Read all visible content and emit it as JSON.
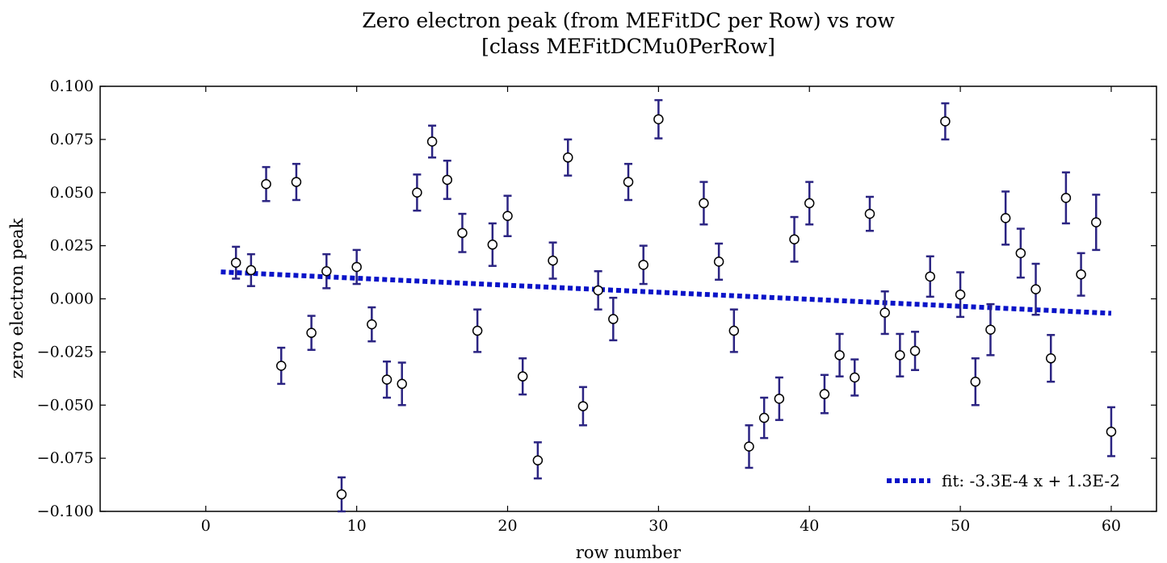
{
  "chart_data": {
    "type": "scatter",
    "title": "Zero electron peak (from MEFitDC per Row) vs row",
    "subtitle": "[class MEFitDCMu0PerRow]",
    "xlabel": "row number",
    "ylabel": "zero electron peak",
    "xlim": [
      -7,
      63
    ],
    "ylim": [
      -0.1,
      0.1
    ],
    "xticks": [
      "0",
      "10",
      "20",
      "30",
      "40",
      "50",
      "60"
    ],
    "yticks": [
      "0.100",
      "0.075",
      "0.050",
      "0.025",
      "0.000",
      "−0.025",
      "−0.050",
      "−0.075",
      "−0.100"
    ],
    "grid": false,
    "legend_position": "bottom-right",
    "series": [
      {
        "kind": "errorbar",
        "color": "#2b2482",
        "marker_fill": "#ffffff",
        "points": [
          {
            "x": 2,
            "y": 0.017,
            "err": 0.0075
          },
          {
            "x": 3,
            "y": 0.0135,
            "err": 0.0075
          },
          {
            "x": 4,
            "y": 0.054,
            "err": 0.008
          },
          {
            "x": 5,
            "y": -0.0315,
            "err": 0.0085
          },
          {
            "x": 6,
            "y": 0.055,
            "err": 0.0085
          },
          {
            "x": 7,
            "y": -0.016,
            "err": 0.008
          },
          {
            "x": 8,
            "y": 0.013,
            "err": 0.008
          },
          {
            "x": 9,
            "y": -0.092,
            "err": 0.008
          },
          {
            "x": 10,
            "y": 0.015,
            "err": 0.008
          },
          {
            "x": 11,
            "y": -0.012,
            "err": 0.008
          },
          {
            "x": 12,
            "y": -0.038,
            "err": 0.0085
          },
          {
            "x": 13,
            "y": -0.04,
            "err": 0.01
          },
          {
            "x": 14,
            "y": 0.05,
            "err": 0.0085
          },
          {
            "x": 15,
            "y": 0.074,
            "err": 0.0075
          },
          {
            "x": 16,
            "y": 0.056,
            "err": 0.009
          },
          {
            "x": 17,
            "y": 0.031,
            "err": 0.009
          },
          {
            "x": 18,
            "y": -0.015,
            "err": 0.01
          },
          {
            "x": 19,
            "y": 0.0255,
            "err": 0.01
          },
          {
            "x": 20,
            "y": 0.039,
            "err": 0.0095
          },
          {
            "x": 21,
            "y": -0.0365,
            "err": 0.0085
          },
          {
            "x": 22,
            "y": -0.076,
            "err": 0.0085
          },
          {
            "x": 23,
            "y": 0.018,
            "err": 0.0085
          },
          {
            "x": 24,
            "y": 0.0665,
            "err": 0.0085
          },
          {
            "x": 25,
            "y": -0.0505,
            "err": 0.009
          },
          {
            "x": 26,
            "y": 0.004,
            "err": 0.009
          },
          {
            "x": 27,
            "y": -0.0095,
            "err": 0.01
          },
          {
            "x": 28,
            "y": 0.055,
            "err": 0.0085
          },
          {
            "x": 29,
            "y": 0.016,
            "err": 0.009
          },
          {
            "x": 30,
            "y": 0.0845,
            "err": 0.009
          },
          {
            "x": 33,
            "y": 0.045,
            "err": 0.01
          },
          {
            "x": 34,
            "y": 0.0175,
            "err": 0.0085
          },
          {
            "x": 35,
            "y": -0.015,
            "err": 0.01
          },
          {
            "x": 36,
            "y": -0.0695,
            "err": 0.01
          },
          {
            "x": 37,
            "y": -0.056,
            "err": 0.0095
          },
          {
            "x": 38,
            "y": -0.047,
            "err": 0.01
          },
          {
            "x": 39,
            "y": 0.028,
            "err": 0.0105
          },
          {
            "x": 40,
            "y": 0.045,
            "err": 0.01
          },
          {
            "x": 41,
            "y": -0.0448,
            "err": 0.009
          },
          {
            "x": 42,
            "y": -0.0265,
            "err": 0.01
          },
          {
            "x": 43,
            "y": -0.037,
            "err": 0.0085
          },
          {
            "x": 44,
            "y": 0.04,
            "err": 0.008
          },
          {
            "x": 45,
            "y": -0.0065,
            "err": 0.01
          },
          {
            "x": 46,
            "y": -0.0265,
            "err": 0.01
          },
          {
            "x": 47,
            "y": -0.0245,
            "err": 0.009
          },
          {
            "x": 48,
            "y": 0.0105,
            "err": 0.0095
          },
          {
            "x": 49,
            "y": 0.0835,
            "err": 0.0085
          },
          {
            "x": 50,
            "y": 0.002,
            "err": 0.0105
          },
          {
            "x": 51,
            "y": -0.039,
            "err": 0.011
          },
          {
            "x": 52,
            "y": -0.0145,
            "err": 0.012
          },
          {
            "x": 53,
            "y": 0.038,
            "err": 0.0125
          },
          {
            "x": 54,
            "y": 0.0215,
            "err": 0.0115
          },
          {
            "x": 55,
            "y": 0.0045,
            "err": 0.012
          },
          {
            "x": 56,
            "y": -0.028,
            "err": 0.011
          },
          {
            "x": 57,
            "y": 0.0475,
            "err": 0.012
          },
          {
            "x": 58,
            "y": 0.0115,
            "err": 0.01
          },
          {
            "x": 59,
            "y": 0.036,
            "err": 0.013
          },
          {
            "x": 60,
            "y": -0.0625,
            "err": 0.0115
          }
        ]
      },
      {
        "kind": "fit-line",
        "name": "fit: -3.3E-4 x + 1.3E-2",
        "color": "#0a14c8",
        "slope": -0.00033,
        "intercept": 0.013,
        "x_range": [
          1,
          60
        ]
      }
    ]
  }
}
